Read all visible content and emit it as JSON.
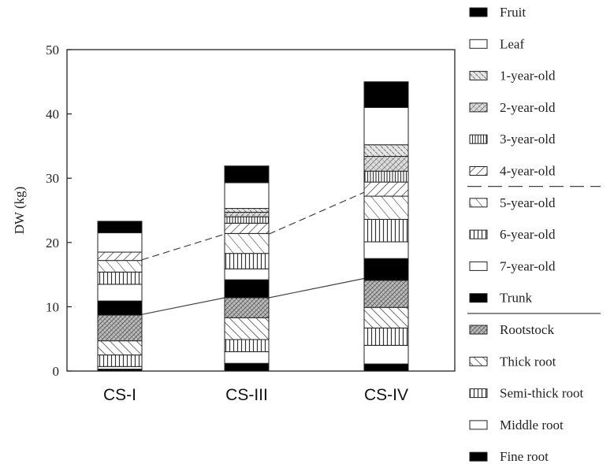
{
  "chart_data": {
    "type": "bar",
    "stacked": true,
    "ylabel": "DW (kg)",
    "xlabel": "",
    "ylim": [
      0,
      50
    ],
    "yticks": [
      0,
      10,
      20,
      30,
      40,
      50
    ],
    "grid": false,
    "legend_position": "right",
    "categories": [
      "CS-I",
      "CS-III",
      "CS-IV"
    ],
    "series": [
      {
        "name": "Fine root",
        "pattern": "solid-black",
        "values": [
          0.3,
          1.2,
          1.1
        ]
      },
      {
        "name": "Middle root",
        "pattern": "white",
        "values": [
          0.4,
          1.8,
          2.9
        ]
      },
      {
        "name": "Semi-thick root",
        "pattern": "vertical-lines",
        "values": [
          1.8,
          1.9,
          2.7
        ]
      },
      {
        "name": "Thick root",
        "pattern": "diagonal-up",
        "values": [
          2.2,
          3.4,
          3.2
        ]
      },
      {
        "name": "Rootstock",
        "pattern": "dense-crosshatch",
        "values": [
          4.0,
          3.1,
          4.2
        ]
      },
      {
        "name": "Trunk",
        "pattern": "solid-black",
        "values": [
          2.2,
          2.8,
          3.4
        ]
      },
      {
        "name": "7-year-old",
        "pattern": "white",
        "values": [
          2.6,
          1.7,
          2.6
        ]
      },
      {
        "name": "6-year-old",
        "pattern": "vertical-lines",
        "values": [
          1.9,
          2.4,
          3.5
        ]
      },
      {
        "name": "5-year-old",
        "pattern": "diagonal-up-wide",
        "values": [
          1.8,
          3.1,
          3.6
        ]
      },
      {
        "name": "4-year-old",
        "pattern": "diagonal-down",
        "values": [
          1.3,
          1.6,
          2.2
        ]
      },
      {
        "name": "3-year-old",
        "pattern": "vertical-lines-dense",
        "values": [
          0.0,
          1.0,
          1.7
        ]
      },
      {
        "name": "2-year-old",
        "pattern": "crosshatch",
        "values": [
          0.0,
          0.7,
          2.3
        ]
      },
      {
        "name": "1-year-old",
        "pattern": "dotted-diagonal",
        "values": [
          0.0,
          0.6,
          1.8
        ]
      },
      {
        "name": "Leaf",
        "pattern": "white",
        "values": [
          3.0,
          4.0,
          5.8
        ]
      },
      {
        "name": "Fruit",
        "pattern": "solid-black",
        "values": [
          1.8,
          2.6,
          4.0
        ]
      }
    ],
    "legend_order": [
      "Fruit",
      "Leaf",
      "1-year-old",
      "2-year-old",
      "3-year-old",
      "4-year-old",
      "5-year-old",
      "6-year-old",
      "7-year-old",
      "Trunk",
      "Rootstock",
      "Thick root",
      "Semi-thick root",
      "Middle root",
      "Fine root"
    ],
    "connector_lines": [
      {
        "style": "dashed",
        "y_values": [
          17.3,
          21.3,
          27.8
        ]
      },
      {
        "style": "solid",
        "y_values": [
          8.8,
          11.4,
          14.4
        ]
      }
    ]
  }
}
